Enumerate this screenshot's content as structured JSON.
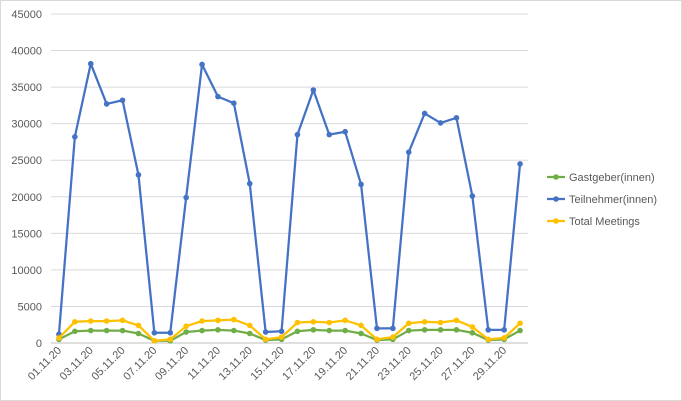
{
  "chart_data": {
    "type": "line",
    "title": "",
    "xlabel": "",
    "ylabel": "",
    "ylim": [
      0,
      45000
    ],
    "yticks": [
      0,
      5000,
      10000,
      15000,
      20000,
      25000,
      30000,
      35000,
      40000,
      45000
    ],
    "grid": true,
    "legend_position": "right",
    "categories": [
      "01.11.20",
      "02.11.20",
      "03.11.20",
      "04.11.20",
      "05.11.20",
      "06.11.20",
      "07.11.20",
      "08.11.20",
      "09.11.20",
      "10.11.20",
      "11.11.20",
      "12.11.20",
      "13.11.20",
      "14.11.20",
      "15.11.20",
      "16.11.20",
      "17.11.20",
      "18.11.20",
      "19.11.20",
      "20.11.20",
      "21.11.20",
      "22.11.20",
      "23.11.20",
      "24.11.20",
      "25.11.20",
      "26.11.20",
      "27.11.20",
      "28.11.20",
      "29.11.20",
      "30.11.20"
    ],
    "shown_tick_labels": [
      "01.11.20",
      "03.11.20",
      "05.11.20",
      "07.11.20",
      "09.11.20",
      "11.11.20",
      "13.11.20",
      "15.11.20",
      "17.11.20",
      "19.11.20",
      "21.11.20",
      "23.11.20",
      "25.11.20",
      "27.11.20",
      "29.11.20"
    ],
    "series": [
      {
        "name": "Gastgeber(innen)",
        "color": "#70ad47",
        "values": [
          500,
          1600,
          1700,
          1700,
          1700,
          1300,
          300,
          300,
          1500,
          1700,
          1800,
          1700,
          1300,
          400,
          500,
          1600,
          1800,
          1700,
          1700,
          1300,
          400,
          500,
          1700,
          1800,
          1800,
          1800,
          1400,
          400,
          500,
          1700
        ]
      },
      {
        "name": "Teilnehmer(innen)",
        "color": "#4472c4",
        "values": [
          1200,
          28200,
          38200,
          32700,
          33200,
          23000,
          1400,
          1400,
          19900,
          38100,
          33700,
          32800,
          21800,
          1500,
          1600,
          28500,
          34600,
          28500,
          28900,
          21700,
          2000,
          2000,
          26100,
          31400,
          30100,
          30800,
          20100,
          1800,
          1800,
          24500
        ]
      },
      {
        "name": "Total Meetings",
        "color": "#ffc000",
        "values": [
          700,
          2900,
          3000,
          3000,
          3100,
          2400,
          300,
          500,
          2300,
          3000,
          3100,
          3200,
          2400,
          500,
          800,
          2800,
          2900,
          2800,
          3100,
          2400,
          500,
          800,
          2700,
          2900,
          2800,
          3100,
          2200,
          500,
          700,
          2700
        ]
      }
    ]
  }
}
